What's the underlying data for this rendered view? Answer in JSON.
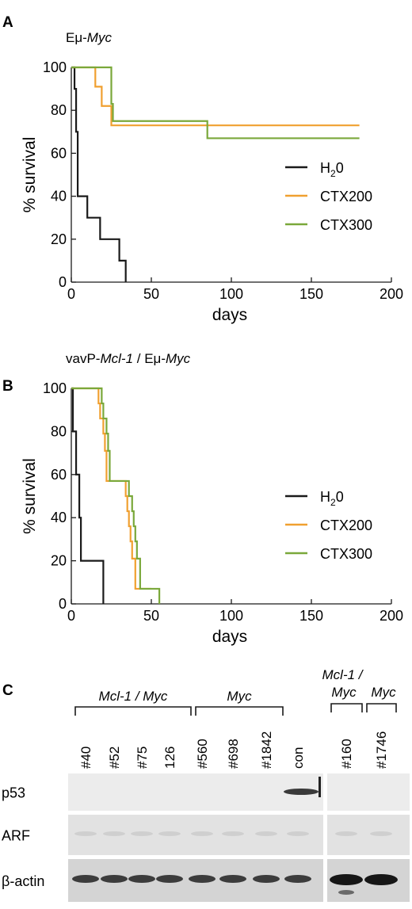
{
  "panels": {
    "a": {
      "letter": "A",
      "title_prefix": "Eμ-",
      "title_italic": "Myc"
    },
    "b": {
      "letter": "B",
      "title_parts": [
        {
          "text": "vavP-",
          "italic": false
        },
        {
          "text": "Mcl-1",
          "italic": true
        },
        {
          "text": " / Eμ-",
          "italic": false
        },
        {
          "text": "Myc",
          "italic": true
        }
      ]
    },
    "c": {
      "letter": "C"
    }
  },
  "chart_data": [
    {
      "type": "line",
      "step": true,
      "xlabel": "days",
      "ylabel": "% survival",
      "xlim": [
        0,
        200
      ],
      "ylim": [
        0,
        100
      ],
      "xticks": [
        0,
        50,
        100,
        150,
        200
      ],
      "yticks": [
        0,
        20,
        40,
        60,
        80,
        100
      ],
      "legend_placement": "right",
      "series": [
        {
          "name": "H20",
          "color": "#1a1a1a",
          "x": [
            0,
            1,
            2,
            3,
            4,
            10,
            18,
            30,
            34
          ],
          "y": [
            100,
            100,
            90,
            70,
            40,
            30,
            20,
            10,
            0
          ]
        },
        {
          "name": "CTX200",
          "color": "#f0a030",
          "x": [
            0,
            15,
            19,
            25,
            180
          ],
          "y": [
            100,
            91,
            82,
            73,
            73
          ]
        },
        {
          "name": "CTX300",
          "color": "#7aa83a",
          "x": [
            0,
            25,
            26,
            85,
            180
          ],
          "y": [
            100,
            83,
            75,
            67,
            67
          ]
        }
      ]
    },
    {
      "type": "line",
      "step": true,
      "xlabel": "days",
      "ylabel": "% survival",
      "xlim": [
        0,
        200
      ],
      "ylim": [
        0,
        100
      ],
      "xticks": [
        0,
        50,
        100,
        150,
        200
      ],
      "yticks": [
        0,
        20,
        40,
        60,
        80,
        100
      ],
      "legend_placement": "right",
      "series": [
        {
          "name": "H20",
          "color": "#1a1a1a",
          "x": [
            0,
            1,
            3,
            5,
            6,
            8,
            20
          ],
          "y": [
            100,
            80,
            60,
            40,
            20,
            20,
            0
          ]
        },
        {
          "name": "CTX200",
          "color": "#f0a030",
          "x": [
            0,
            17,
            18,
            20,
            21,
            22,
            34,
            35,
            36,
            37,
            38,
            40,
            50
          ],
          "y": [
            100,
            93,
            86,
            79,
            71,
            57,
            50,
            43,
            36,
            29,
            21,
            7,
            7
          ]
        },
        {
          "name": "CTX300",
          "color": "#7aa83a",
          "x": [
            0,
            19,
            20,
            22,
            23,
            24,
            36,
            38,
            39,
            40,
            41,
            43,
            55
          ],
          "y": [
            100,
            93,
            86,
            79,
            71,
            57,
            50,
            43,
            36,
            29,
            21,
            7,
            0
          ]
        }
      ]
    }
  ],
  "blot": {
    "groups": [
      {
        "label": "Mcl-1 / Myc"
      },
      {
        "label": "Myc"
      },
      {
        "label_line1": "Mcl-1 /",
        "label_line2": "Myc"
      },
      {
        "label": "Myc"
      }
    ],
    "lanes_left": [
      "#40",
      "#52",
      "#75",
      "126",
      "#560",
      "#698",
      "#1842",
      "con"
    ],
    "lanes_right": [
      "#160",
      "#1746"
    ],
    "rows": [
      "p53",
      "ARF",
      "β-actin"
    ]
  }
}
